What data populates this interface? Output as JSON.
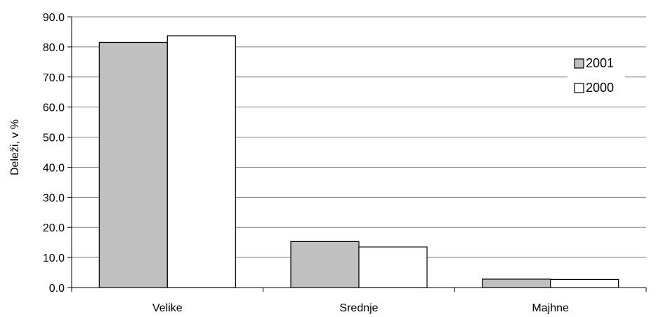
{
  "chart_data": {
    "type": "bar",
    "ylabel": "Deleži, v %",
    "xlabel": "",
    "categories": [
      "Velike",
      "Srednje",
      "Majhne"
    ],
    "series": [
      {
        "name": "2001",
        "values": [
          81.5,
          15.3,
          2.8
        ],
        "color": "#c0c0c0"
      },
      {
        "name": "2000",
        "values": [
          83.7,
          13.5,
          2.7
        ],
        "color": "#ffffff"
      }
    ],
    "ylim": [
      0,
      90
    ],
    "yticks": [
      "0.0",
      "10.0",
      "20.0",
      "30.0",
      "40.0",
      "50.0",
      "60.0",
      "70.0",
      "80.0",
      "90.0"
    ],
    "grid": true,
    "legend_position": "right"
  }
}
